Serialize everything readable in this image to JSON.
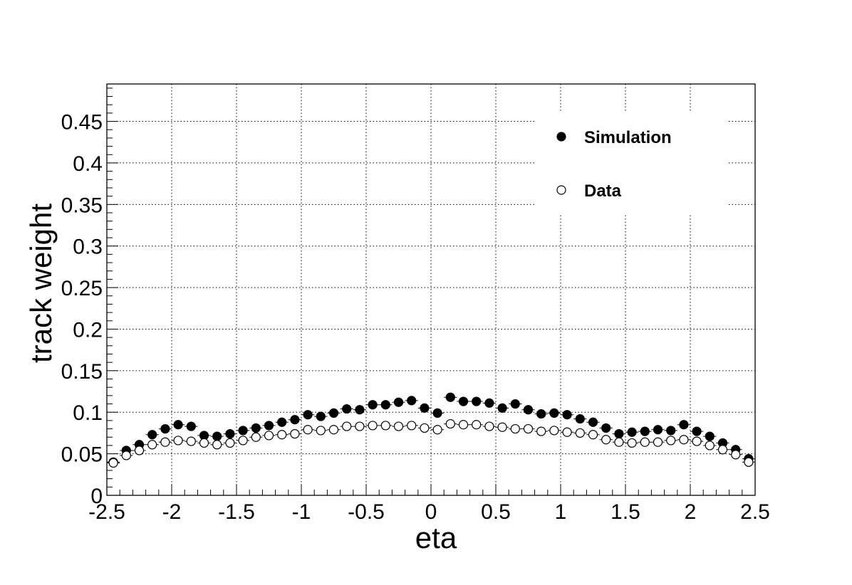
{
  "chart_data": {
    "type": "scatter",
    "title": "",
    "xlabel": "eta",
    "ylabel": "track weight",
    "xlim": [
      -2.5,
      2.5
    ],
    "ylim": [
      0,
      0.495
    ],
    "x_ticks": [
      "-2.5",
      "-2",
      "-1.5",
      "-1",
      "-0.5",
      "0",
      "0.5",
      "1",
      "1.5",
      "2",
      "2.5"
    ],
    "y_ticks": [
      "0",
      "0.05",
      "0.1",
      "0.15",
      "0.2",
      "0.25",
      "0.3",
      "0.35",
      "0.4",
      "0.45"
    ],
    "grid": true,
    "legend_position": "top-right",
    "x": [
      -2.45,
      -2.35,
      -2.25,
      -2.15,
      -2.05,
      -1.95,
      -1.85,
      -1.75,
      -1.65,
      -1.55,
      -1.45,
      -1.35,
      -1.25,
      -1.15,
      -1.05,
      -0.95,
      -0.85,
      -0.75,
      -0.65,
      -0.55,
      -0.45,
      -0.35,
      -0.25,
      -0.15,
      -0.05,
      0.05,
      0.15,
      0.25,
      0.35,
      0.45,
      0.55,
      0.65,
      0.75,
      0.85,
      0.95,
      1.05,
      1.15,
      1.25,
      1.35,
      1.45,
      1.55,
      1.65,
      1.75,
      1.85,
      1.95,
      2.05,
      2.15,
      2.25,
      2.35,
      2.45
    ],
    "series": [
      {
        "name": "Simulation",
        "marker": "filled-circle",
        "color": "#000000",
        "values": [
          0.04,
          0.054,
          0.061,
          0.073,
          0.08,
          0.085,
          0.083,
          0.072,
          0.071,
          0.074,
          0.078,
          0.081,
          0.084,
          0.088,
          0.091,
          0.097,
          0.095,
          0.099,
          0.104,
          0.103,
          0.109,
          0.109,
          0.112,
          0.114,
          0.105,
          0.099,
          0.118,
          0.113,
          0.113,
          0.111,
          0.105,
          0.11,
          0.103,
          0.098,
          0.099,
          0.097,
          0.092,
          0.088,
          0.081,
          0.074,
          0.076,
          0.077,
          0.079,
          0.078,
          0.085,
          0.077,
          0.071,
          0.063,
          0.055,
          0.044
        ]
      },
      {
        "name": "Data",
        "marker": "open-circle",
        "color": "#000000",
        "values": [
          0.039,
          0.048,
          0.054,
          0.061,
          0.064,
          0.066,
          0.065,
          0.063,
          0.061,
          0.063,
          0.066,
          0.07,
          0.072,
          0.073,
          0.074,
          0.079,
          0.078,
          0.079,
          0.083,
          0.083,
          0.084,
          0.084,
          0.083,
          0.084,
          0.081,
          0.079,
          0.086,
          0.085,
          0.085,
          0.083,
          0.082,
          0.08,
          0.08,
          0.077,
          0.078,
          0.076,
          0.075,
          0.073,
          0.067,
          0.064,
          0.063,
          0.064,
          0.064,
          0.066,
          0.067,
          0.065,
          0.06,
          0.055,
          0.049,
          0.04
        ]
      }
    ]
  }
}
